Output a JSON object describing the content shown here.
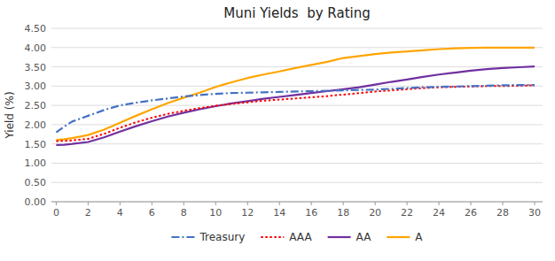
{
  "chart_data": {
    "type": "line",
    "title": "Muni Yields  by Rating",
    "ylabel": "Yield (%)",
    "xlim": [
      -0.3,
      30.5
    ],
    "ylim": [
      0.0,
      4.5
    ],
    "xticks": [
      0,
      2,
      4,
      6,
      8,
      10,
      12,
      14,
      16,
      18,
      20,
      22,
      24,
      26,
      28,
      30
    ],
    "yticks": [
      {
        "value": 0.0,
        "label": "0.00"
      },
      {
        "value": 0.5,
        "label": "0.50"
      },
      {
        "value": 1.0,
        "label": "1.00"
      },
      {
        "value": 1.5,
        "label": "1.50"
      },
      {
        "value": 2.0,
        "label": "2.00"
      },
      {
        "value": 2.5,
        "label": "2.50"
      },
      {
        "value": 3.0,
        "label": "3.00"
      },
      {
        "value": 3.5,
        "label": "3.50"
      },
      {
        "value": 4.0,
        "label": "4.00"
      },
      {
        "value": 4.5,
        "label": "4.50"
      }
    ],
    "grid": true,
    "legend": "bottom",
    "x": [
      0,
      0.5,
      1,
      2,
      3,
      4,
      5,
      6,
      7,
      8,
      9,
      10,
      11,
      12,
      13,
      14,
      15,
      16,
      17,
      18,
      19,
      20,
      21,
      22,
      23,
      24,
      25,
      26,
      27,
      28,
      29,
      30
    ],
    "series": [
      {
        "name": "Treasury",
        "color": "#4472C4",
        "line_style": "dashdot",
        "values": [
          1.8,
          1.95,
          2.08,
          2.23,
          2.38,
          2.5,
          2.57,
          2.63,
          2.68,
          2.73,
          2.77,
          2.8,
          2.82,
          2.83,
          2.84,
          2.85,
          2.86,
          2.87,
          2.88,
          2.89,
          2.9,
          2.91,
          2.93,
          2.95,
          2.97,
          2.98,
          2.99,
          3.0,
          3.01,
          3.02,
          3.03,
          3.03
        ]
      },
      {
        "name": "AAA",
        "color": "#FF0000",
        "line_style": "dotted",
        "values": [
          1.57,
          1.58,
          1.59,
          1.63,
          1.76,
          1.92,
          2.06,
          2.18,
          2.28,
          2.36,
          2.43,
          2.49,
          2.54,
          2.58,
          2.62,
          2.65,
          2.68,
          2.71,
          2.74,
          2.78,
          2.82,
          2.86,
          2.89,
          2.92,
          2.95,
          2.97,
          2.98,
          2.99,
          3.0,
          3.0,
          3.01,
          3.02
        ]
      },
      {
        "name": "AA",
        "color": "#7030A0",
        "line_style": "solid",
        "values": [
          1.47,
          1.48,
          1.5,
          1.55,
          1.67,
          1.82,
          1.96,
          2.09,
          2.21,
          2.31,
          2.4,
          2.48,
          2.55,
          2.61,
          2.67,
          2.72,
          2.77,
          2.82,
          2.87,
          2.92,
          2.97,
          3.04,
          3.11,
          3.17,
          3.24,
          3.3,
          3.35,
          3.4,
          3.44,
          3.47,
          3.49,
          3.51
        ]
      },
      {
        "name": "A",
        "color": "#FFA500",
        "line_style": "solid",
        "values": [
          1.6,
          1.62,
          1.65,
          1.73,
          1.87,
          2.05,
          2.23,
          2.4,
          2.56,
          2.7,
          2.83,
          2.98,
          3.1,
          3.21,
          3.3,
          3.38,
          3.47,
          3.55,
          3.63,
          3.73,
          3.78,
          3.83,
          3.87,
          3.9,
          3.93,
          3.96,
          3.98,
          3.99,
          4.0,
          4.0,
          4.0,
          4.0
        ]
      }
    ]
  }
}
